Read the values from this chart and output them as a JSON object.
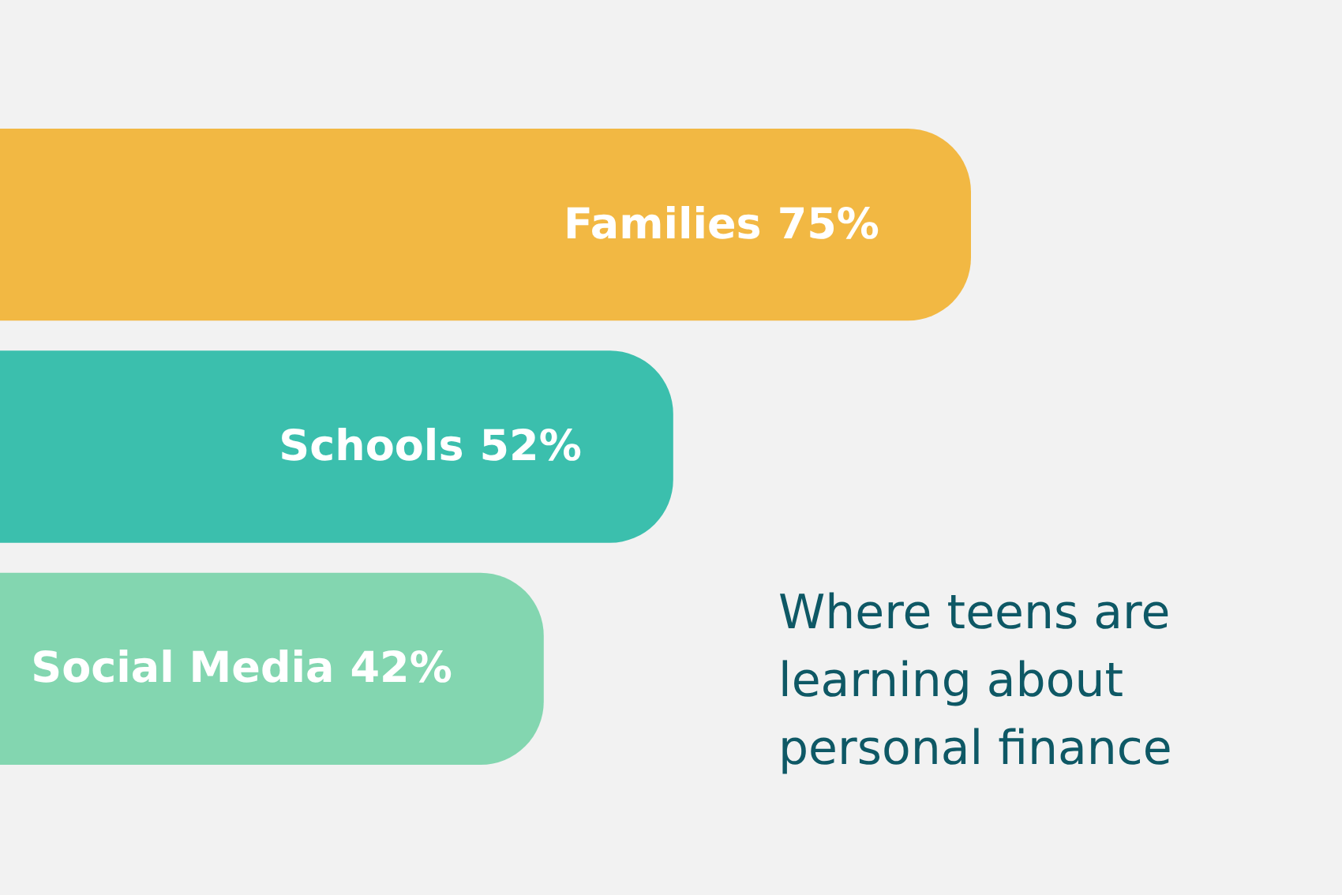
{
  "chart_data": {
    "type": "bar",
    "orientation": "horizontal",
    "title": "Where teens are learning about personal finance",
    "categories": [
      "Families",
      "Schools",
      "Social Media"
    ],
    "values": [
      75,
      52,
      42
    ],
    "colors": [
      "#f2b843",
      "#3bbfad",
      "#83d6b0"
    ],
    "value_labels": [
      "75%",
      "52%",
      "42%"
    ],
    "tick_labels": false
  }
}
